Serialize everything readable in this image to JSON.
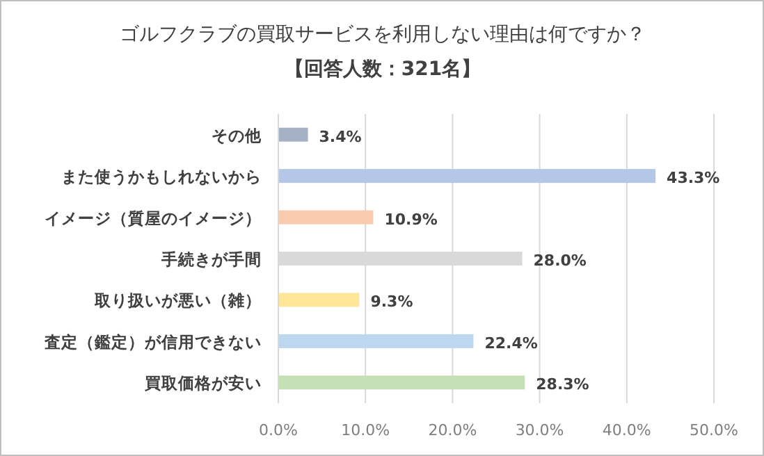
{
  "chart_data": {
    "type": "bar",
    "orientation": "horizontal",
    "title": "ゴルフクラブの買取サービスを利用しない理由は何ですか？",
    "subtitle": "【回答人数：321名】",
    "categories": [
      "その他",
      "また使うかもしれないから",
      "イメージ（質屋のイメージ）",
      "手続きが手間",
      "取り扱いが悪い（雑）",
      "査定（鑑定）が信用できない",
      "買取価格が安い"
    ],
    "values": [
      3.4,
      43.3,
      10.9,
      28.0,
      9.3,
      22.4,
      28.3
    ],
    "value_labels": [
      "3.4%",
      "43.3%",
      "10.9%",
      "28.0%",
      "9.3%",
      "22.4%",
      "28.3%"
    ],
    "colors": [
      "#a5b1c4",
      "#b4c7e7",
      "#f8cbad",
      "#d9d9d9",
      "#ffe699",
      "#bdd7ee",
      "#c5e0b4"
    ],
    "xlim": [
      0,
      50
    ],
    "xticks": [
      {
        "value": 0,
        "label": "0.0%"
      },
      {
        "value": 10,
        "label": "10.0%"
      },
      {
        "value": 20,
        "label": "20.0%"
      },
      {
        "value": 30,
        "label": "30.0%"
      },
      {
        "value": 40,
        "label": "40.0%"
      },
      {
        "value": 50,
        "label": "50.0%"
      }
    ],
    "grid": "x"
  }
}
